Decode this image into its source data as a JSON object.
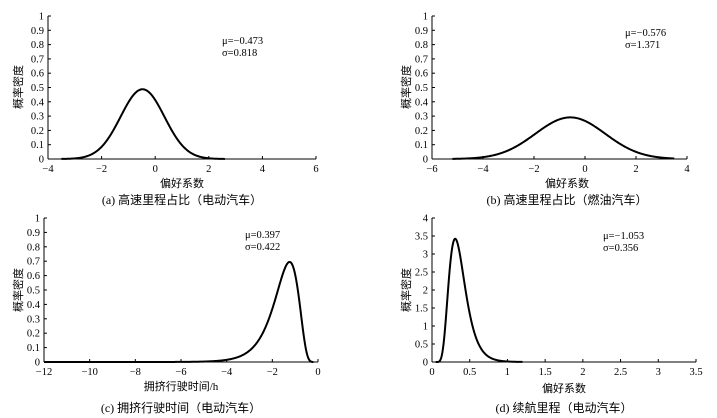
{
  "y_label": "概率密度",
  "chart_data": [
    {
      "type": "line",
      "caption": "(a)  高速里程占比（电动汽车）",
      "xlabel": "偏好系数",
      "ylabel": "概率密度",
      "distribution": "normal",
      "mu_label": "μ=−0.473",
      "sigma_label": "σ=0.818",
      "mu": -0.473,
      "sigma": 0.818,
      "x_range": [
        -3.5,
        2.6
      ],
      "xlim": [
        -4,
        6
      ],
      "ylim": [
        0,
        1
      ],
      "xticks": [
        "−4",
        "−2",
        "0",
        "2",
        "4",
        "6"
      ],
      "yticks": [
        "0",
        "0.1",
        "0.2",
        "0.3",
        "0.4",
        "0.5",
        "0.6",
        "0.7",
        "0.8",
        "0.9",
        "1"
      ]
    },
    {
      "type": "line",
      "caption": "(b)  高速里程占比（燃油汽车）",
      "xlabel": "偏好系数",
      "ylabel": "概率密度",
      "distribution": "normal",
      "mu_label": "μ=−0.576",
      "sigma_label": "σ=1.371",
      "mu": -0.576,
      "sigma": 1.371,
      "x_range": [
        -5.2,
        3.5
      ],
      "xlim": [
        -6,
        4
      ],
      "ylim": [
        0,
        1
      ],
      "xticks": [
        "−6",
        "−4",
        "−2",
        "0",
        "2",
        "4"
      ],
      "yticks": [
        "0",
        "0.1",
        "0.2",
        "0.3",
        "0.4",
        "0.5",
        "0.6",
        "0.7",
        "0.8",
        "0.9",
        "1"
      ]
    },
    {
      "type": "line",
      "caption": "(c)  拥挤行驶时间（电动汽车）",
      "xlabel": "拥挤行驶时间/h",
      "ylabel": "概率密度",
      "distribution": "negative_lognormal",
      "mu_label": "μ=0.397",
      "sigma_label": "σ=0.422",
      "mu": 0.397,
      "sigma": 0.422,
      "x_range": [
        -12,
        -0.2
      ],
      "xlim": [
        -12,
        0
      ],
      "ylim": [
        0,
        1
      ],
      "xticks": [
        "−12",
        "−10",
        "−8",
        "−6",
        "−4",
        "−2",
        "0"
      ],
      "yticks": [
        "0",
        "0.1",
        "0.2",
        "0.3",
        "0.4",
        "0.5",
        "0.6",
        "0.7",
        "0.8",
        "0.9",
        "1"
      ]
    },
    {
      "type": "line",
      "caption": "(d)  续航里程（电动汽车）",
      "xlabel": "偏好系数",
      "ylabel": "概率密度",
      "distribution": "lognormal",
      "mu_label": "μ=−1.053",
      "sigma_label": "σ=0.356",
      "mu": -1.053,
      "sigma": 0.356,
      "x_range": [
        0.05,
        1.2
      ],
      "xlim": [
        0,
        3.5
      ],
      "ylim": [
        0,
        4
      ],
      "xticks": [
        "0",
        "0.5",
        "1",
        "1.5",
        "2",
        "2.5",
        "3",
        "3.5"
      ],
      "yticks": [
        "0",
        "0.5",
        "1",
        "1.5",
        "2",
        "2.5",
        "3",
        "3.5",
        "4"
      ]
    }
  ]
}
